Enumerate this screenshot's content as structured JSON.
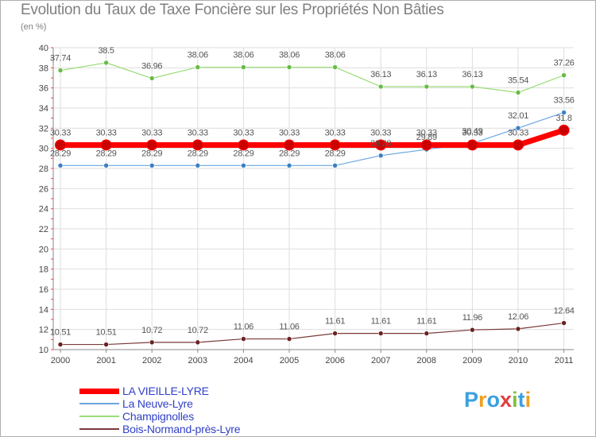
{
  "chart_data": {
    "type": "line",
    "title": "Evolution du Taux de Taxe Foncière sur les Propriétés Non Bâties",
    "unit_label": "(en %)",
    "xlabel": "",
    "ylabel": "",
    "x": [
      "2000",
      "2001",
      "2002",
      "2003",
      "2004",
      "2005",
      "2006",
      "2007",
      "2008",
      "2009",
      "2010",
      "2011"
    ],
    "ylim": [
      10,
      40
    ],
    "yticks": [
      10,
      12,
      14,
      16,
      18,
      20,
      22,
      24,
      26,
      28,
      30,
      32,
      34,
      36,
      38,
      40
    ],
    "ytick_labels": [
      "10",
      "12",
      "14",
      "16",
      "18",
      "20",
      "22",
      "24",
      "26",
      "28",
      "30",
      "32",
      "34",
      "36",
      "38",
      "40"
    ],
    "grid": true,
    "legend_position": "bottom-left",
    "series": [
      {
        "name": "LA VIEILLE-LYRE",
        "color": "#ff0000",
        "marker_color": "#cc0000",
        "emphasis": true,
        "values": [
          30.33,
          30.33,
          30.33,
          30.33,
          30.33,
          30.33,
          30.33,
          30.33,
          30.33,
          30.33,
          30.33,
          31.8
        ],
        "labels": [
          "30.33",
          "30.33",
          "30.33",
          "30.33",
          "30.33",
          "30.33",
          "30.33",
          "30.33",
          "30.33",
          "30.33",
          "30.33",
          "31.8"
        ]
      },
      {
        "name": "La Neuve-Lyre",
        "color": "#6aa6e0",
        "marker_color": "#3a7fc4",
        "emphasis": false,
        "values": [
          28.29,
          28.29,
          28.29,
          28.29,
          28.29,
          28.29,
          28.29,
          29.28,
          29.89,
          30.49,
          32.01,
          33.56
        ],
        "labels": [
          "28.29",
          "28.29",
          "28.29",
          "28.29",
          "28.29",
          "28.29",
          "28.29",
          "29.28",
          "29.89",
          "30.49",
          "32.01",
          "33.56"
        ]
      },
      {
        "name": "Champignolles",
        "color": "#99dd77",
        "marker_color": "#66bb44",
        "emphasis": false,
        "values": [
          37.74,
          38.5,
          36.96,
          38.06,
          38.06,
          38.06,
          38.06,
          36.13,
          36.13,
          36.13,
          35.54,
          37.26
        ],
        "labels": [
          "37.74",
          "38.5",
          "36.96",
          "38.06",
          "38.06",
          "38.06",
          "38.06",
          "36.13",
          "36.13",
          "36.13",
          "35.54",
          "37.26"
        ]
      },
      {
        "name": "Bois-Normand-près-Lyre",
        "color": "#7a3a3a",
        "marker_color": "#6a2222",
        "emphasis": false,
        "values": [
          10.51,
          10.51,
          10.72,
          10.72,
          11.06,
          11.06,
          11.61,
          11.61,
          11.61,
          11.96,
          12.06,
          12.64
        ],
        "labels": [
          "10.51",
          "10.51",
          "10.72",
          "10.72",
          "11.06",
          "11.06",
          "11.61",
          "11.61",
          "11.61",
          "11.96",
          "12.06",
          "12.64"
        ]
      }
    ]
  },
  "logo": {
    "letters": [
      "P",
      "r",
      "o",
      "x",
      "i",
      "t",
      "i"
    ],
    "colors": [
      "#3aa0e0",
      "#f0a020",
      "#3aa0e0",
      "#e04040",
      "#80c040",
      "#3aa0e0",
      "#f0a020"
    ]
  }
}
